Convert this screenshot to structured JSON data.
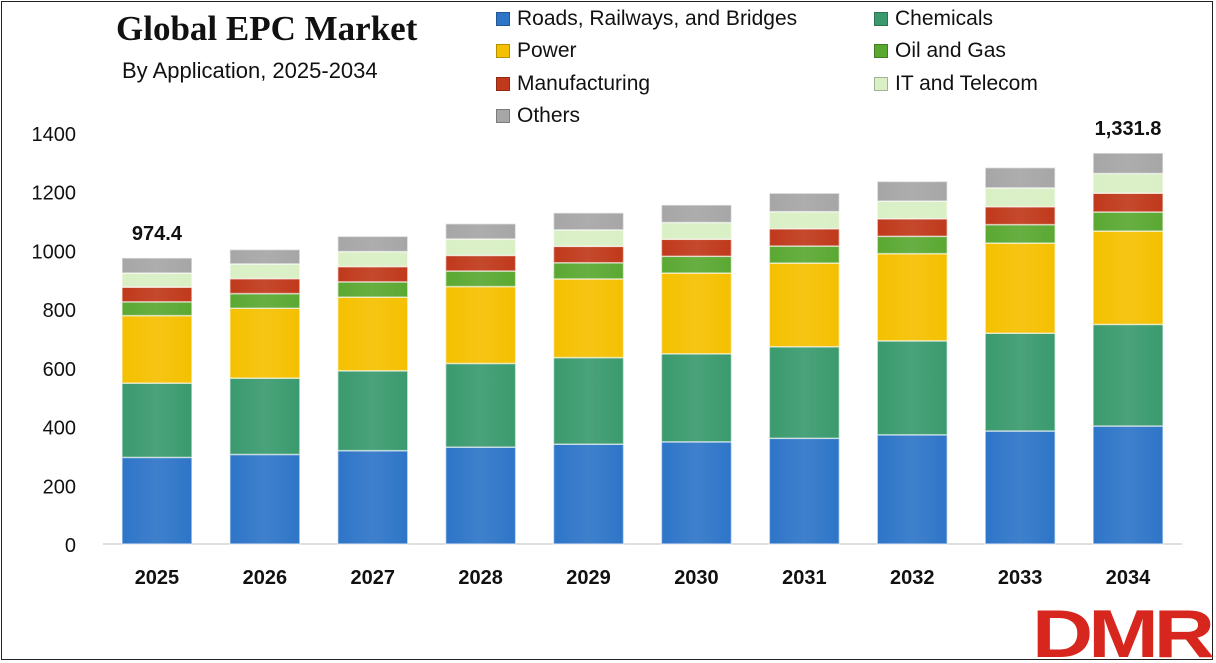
{
  "title": "Global EPC Market",
  "subtitle": "By Application, 2025-2034",
  "logo_text": "DMR",
  "colors": {
    "roads": "#2e75c8",
    "chemicals": "#3a9a6e",
    "power": "#f5c000",
    "oil_gas": "#5aa832",
    "manufacturing": "#c0391b",
    "it_telecom": "#d9efc4",
    "others": "#a6a6a6",
    "logo_red": "#d7261e",
    "logo_gray": "#7f7f7f"
  },
  "chart_data": {
    "type": "bar",
    "stacked": true,
    "title": "Global EPC Market",
    "subtitle": "By Application, 2025-2034",
    "categories": [
      "2025",
      "2026",
      "2027",
      "2028",
      "2029",
      "2030",
      "2031",
      "2032",
      "2033",
      "2034"
    ],
    "ylim": [
      0,
      1400
    ],
    "yticks": [
      0,
      200,
      400,
      600,
      800,
      1000,
      1200,
      1400
    ],
    "grid": false,
    "legend_position": "top",
    "series": [
      {
        "name": "Roads, Railways, and Bridges",
        "color": "#2e75c8",
        "values": [
          295,
          305,
          318,
          330,
          340,
          348,
          360,
          372,
          385,
          402
        ]
      },
      {
        "name": "Chemicals",
        "color": "#3a9a6e",
        "values": [
          253,
          260,
          272,
          285,
          295,
          300,
          312,
          320,
          333,
          346
        ]
      },
      {
        "name": "Power",
        "color": "#f5c000",
        "values": [
          230,
          238,
          251,
          262,
          268,
          275,
          285,
          297,
          307,
          318
        ]
      },
      {
        "name": "Oil and Gas",
        "color": "#5aa832",
        "values": [
          47,
          50,
          52,
          53,
          55,
          57,
          58,
          59,
          63,
          65
        ]
      },
      {
        "name": "Manufacturing",
        "color": "#c0391b",
        "values": [
          50,
          51,
          52,
          53,
          56,
          58,
          59,
          60,
          61,
          64
        ]
      },
      {
        "name": "IT and Telecom",
        "color": "#d9efc4",
        "values": [
          48,
          50,
          51,
          56,
          56,
          57,
          58,
          60,
          64,
          67
        ]
      },
      {
        "name": "Others",
        "color": "#a6a6a6",
        "values": [
          51.4,
          49,
          52,
          52,
          58,
          60,
          63,
          67,
          69,
          69.8
        ]
      }
    ],
    "annotations": [
      {
        "category": "2025",
        "label": "974.4"
      },
      {
        "category": "2034",
        "label": "1,331.8"
      }
    ]
  }
}
